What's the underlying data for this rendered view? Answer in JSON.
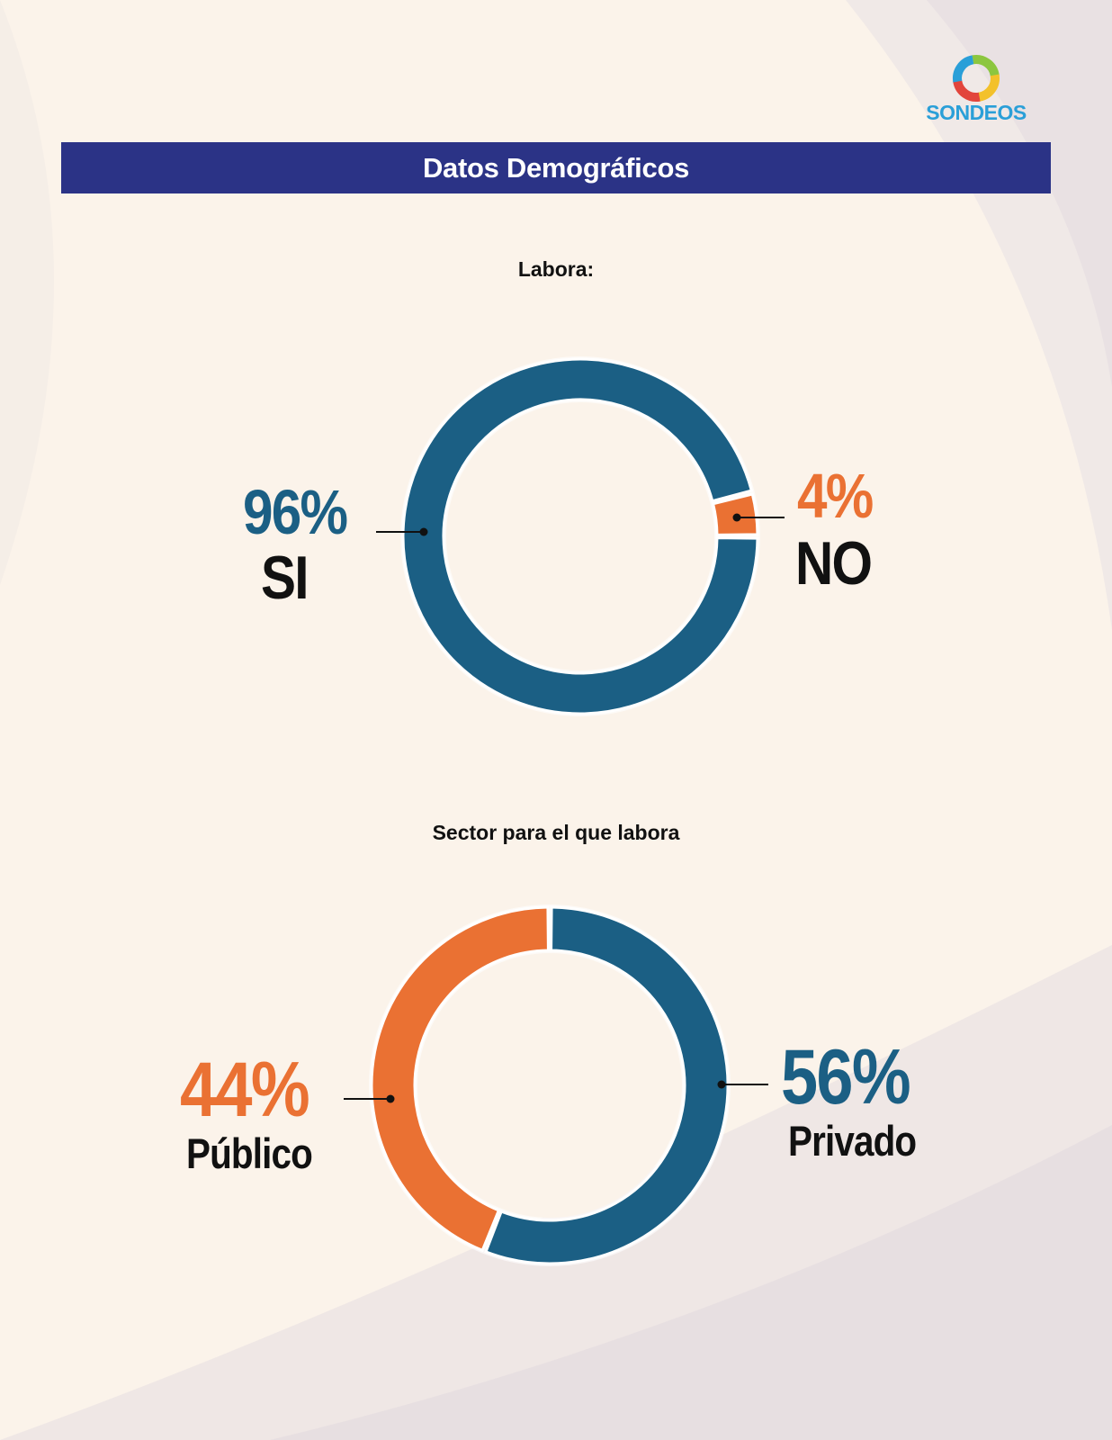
{
  "header": {
    "title": "Datos Demográficos",
    "logo_text": "SONDEOS"
  },
  "colors": {
    "banner": "#2b3386",
    "blue": "#1b5f84",
    "orange": "#ea7133",
    "logo_blue": "#2a9fd8"
  },
  "chart_data": [
    {
      "type": "pie",
      "title": "Labora:",
      "categories": [
        "SI",
        "NO"
      ],
      "values": [
        96,
        4
      ],
      "labels": [
        "96%",
        "4%"
      ],
      "colors": [
        "#1b5f84",
        "#ea7133"
      ]
    },
    {
      "type": "pie",
      "title": "Sector para el que labora",
      "categories": [
        "Privado",
        "Público"
      ],
      "values": [
        56,
        44
      ],
      "labels": [
        "56%",
        "44%"
      ],
      "colors": [
        "#1b5f84",
        "#ea7133"
      ]
    }
  ]
}
